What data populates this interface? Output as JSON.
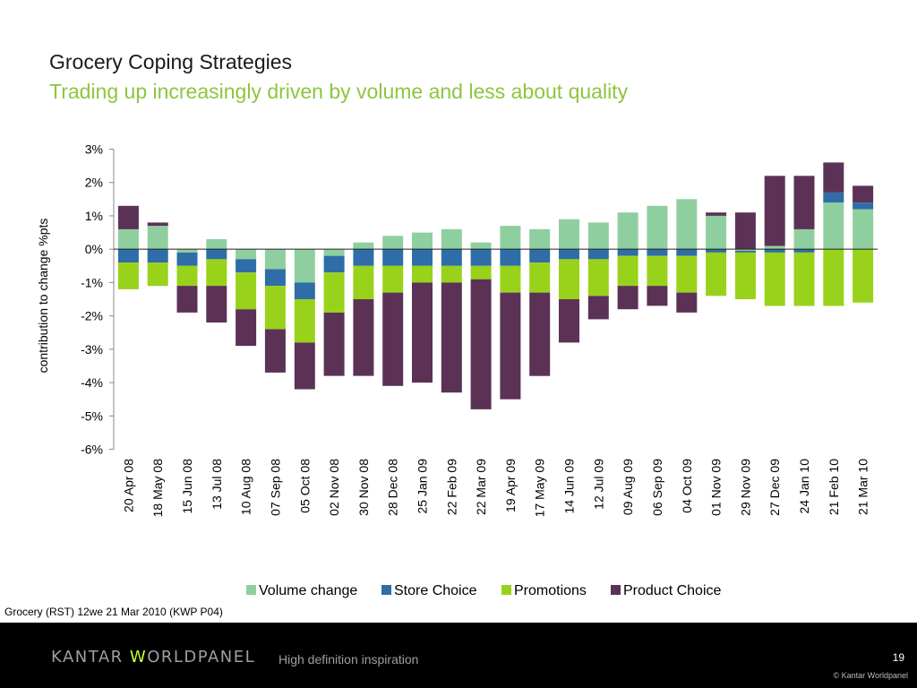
{
  "slide": {
    "title": "Grocery Coping Strategies",
    "subtitle": "Trading up increasingly driven by volume and less about quality",
    "source": "Grocery (RST)  12we 21 Mar 2010 (KWP P04)"
  },
  "footer": {
    "brand": "KANTAR WORLDPANEL",
    "tagline": "High definition inspiration",
    "page_number": "19",
    "copyright": "© Kantar Worldpanel"
  },
  "colors": {
    "volume": "#8fcf9f",
    "store": "#2f6da8",
    "promotions": "#99d21a",
    "product": "#5b3256",
    "subtitle": "#8dc63f"
  },
  "chart_data": {
    "type": "bar",
    "stacked": true,
    "ylabel": "contribution to change %pts",
    "ylim": [
      -6,
      3
    ],
    "yticks": [
      3,
      2,
      1,
      0,
      -1,
      -2,
      -3,
      -4,
      -5,
      -6
    ],
    "ytick_labels": [
      "3%",
      "2%",
      "1%",
      "0%",
      "-1%",
      "-2%",
      "-3%",
      "-4%",
      "-5%",
      "-6%"
    ],
    "legend_position": "bottom",
    "categories": [
      "20 Apr 08",
      "18 May 08",
      "15 Jun 08",
      "13 Jul 08",
      "10 Aug 08",
      "07 Sep 08",
      "05 Oct 08",
      "02 Nov 08",
      "30 Nov 08",
      "28 Dec 08",
      "25 Jan 09",
      "22 Feb 09",
      "22 Mar 09",
      "19 Apr 09",
      "17 May 09",
      "14 Jun 09",
      "12 Jul 09",
      "09 Aug 09",
      "06 Sep 09",
      "04 Oct 09",
      "01 Nov 09",
      "29 Nov 09",
      "27 Dec 09",
      "24 Jan 10",
      "21 Feb 10",
      "21 Mar 10"
    ],
    "series": [
      {
        "name": "Volume change",
        "key": "volume",
        "values": [
          0.6,
          0.7,
          -0.1,
          0.3,
          -0.3,
          -0.6,
          -1.0,
          -0.2,
          0.2,
          0.4,
          0.5,
          0.6,
          0.2,
          0.7,
          0.6,
          0.9,
          0.8,
          1.1,
          1.3,
          1.5,
          1.0,
          -0.05,
          0.1,
          0.6,
          1.4,
          1.2
        ]
      },
      {
        "name": "Store Choice",
        "key": "store",
        "values": [
          -0.4,
          -0.4,
          -0.4,
          -0.3,
          -0.4,
          -0.5,
          -0.5,
          -0.5,
          -0.5,
          -0.5,
          -0.5,
          -0.5,
          -0.5,
          -0.5,
          -0.4,
          -0.3,
          -0.3,
          -0.2,
          -0.2,
          -0.2,
          -0.1,
          -0.05,
          -0.1,
          -0.1,
          0.3,
          0.2
        ]
      },
      {
        "name": "Promotions",
        "key": "promotions",
        "values": [
          -0.8,
          -0.7,
          -0.6,
          -0.8,
          -1.1,
          -1.3,
          -1.3,
          -1.2,
          -1.0,
          -0.8,
          -0.5,
          -0.5,
          -0.4,
          -0.8,
          -0.9,
          -1.2,
          -1.1,
          -0.9,
          -0.9,
          -1.1,
          -1.3,
          -1.4,
          -1.6,
          -1.6,
          -1.7,
          -1.6
        ]
      },
      {
        "name": "Product Choice",
        "key": "product",
        "values": [
          0.7,
          0.1,
          -0.8,
          -1.1,
          -1.1,
          -1.3,
          -1.4,
          -1.9,
          -2.3,
          -2.8,
          -3.0,
          -3.3,
          -3.9,
          -3.2,
          -2.5,
          -1.3,
          -0.7,
          -0.7,
          -0.6,
          -0.6,
          0.1,
          1.1,
          2.1,
          1.6,
          0.9,
          0.5
        ]
      }
    ]
  }
}
